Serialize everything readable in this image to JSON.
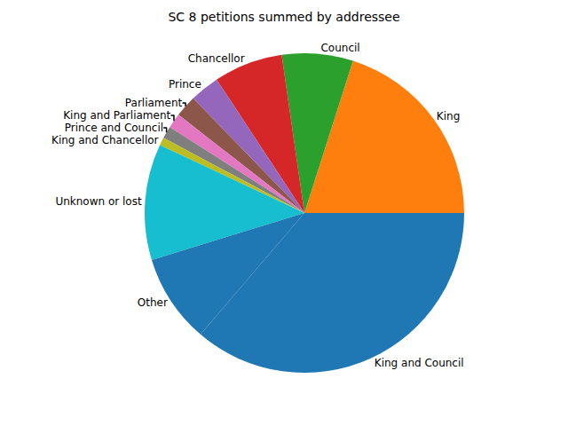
{
  "chart_data": {
    "type": "pie",
    "title": "SC 8 petitions summed by addressee",
    "categories": [
      "King and Council",
      "King",
      "Council",
      "Chancellor",
      "Prince",
      "Parliament",
      "King and Parliament",
      "Prince and Council",
      "King and Chancellor",
      "Unknown or lost",
      "Other"
    ],
    "values": [
      36.3,
      20.1,
      7.2,
      7.0,
      3.0,
      2.2,
      1.5,
      1.25,
      0.8,
      11.75,
      9.0
    ],
    "colors": [
      "#1f77b4",
      "#ff7f0e",
      "#2ca02c",
      "#d62728",
      "#9467bd",
      "#8c564b",
      "#e377c2",
      "#7f7f7f",
      "#bcbd22",
      "#17becf",
      "#1f77b4"
    ]
  }
}
